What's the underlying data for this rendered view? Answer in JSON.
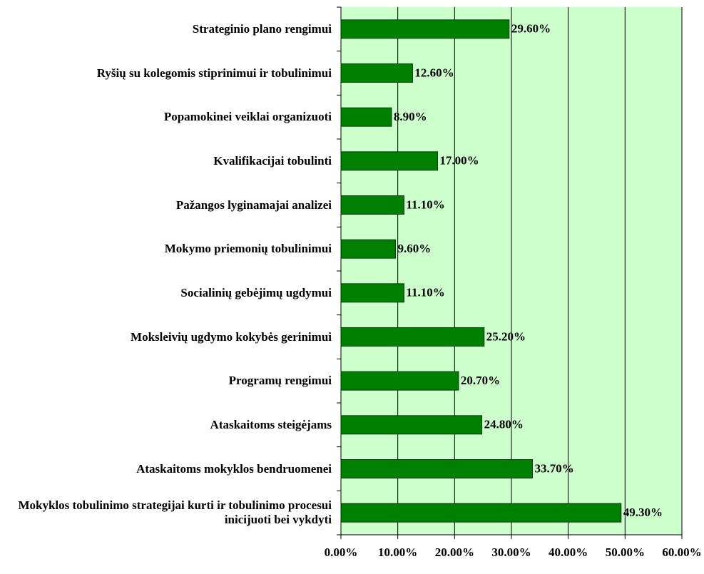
{
  "chart_data": {
    "type": "bar",
    "orientation": "horizontal",
    "categories": [
      "Strateginio plano rengimui",
      "Ryšių su kolegomis stiprinimui ir tobulinimui",
      "Popamokinei veiklai organizuoti",
      "Kvalifikacijai tobulinti",
      "Pažangos lyginamajai analizei",
      "Mokymo priemonių tobulinimui",
      "Socialinių gebėjimų ugdymui",
      "Moksleivių ugdymo kokybės gerinimui",
      "Programų rengimui",
      "Ataskaitoms steigėjams",
      "Ataskaitoms mokyklos bendruomenei",
      "Mokyklos tobulinimo strategijai kurti ir tobulinimo procesui inicijuoti bei vykdyti"
    ],
    "values": [
      29.6,
      12.6,
      8.9,
      17.0,
      11.1,
      9.6,
      11.1,
      25.2,
      20.7,
      24.8,
      33.7,
      49.3
    ],
    "value_labels": [
      "29.60%",
      "12.60%",
      "8.90%",
      "17.00%",
      "11.10%",
      "9.60%",
      "11.10%",
      "25.20%",
      "20.70%",
      "24.80%",
      "33.70%",
      "49.30%"
    ],
    "color": "#008000",
    "xlim": [
      0,
      60
    ],
    "xticks": [
      {
        "value": 0,
        "label": "0.00%"
      },
      {
        "value": 10,
        "label": "10.00%"
      },
      {
        "value": 20,
        "label": "20.00%"
      },
      {
        "value": 30,
        "label": "30.00%"
      },
      {
        "value": 40,
        "label": "40.00%"
      },
      {
        "value": 50,
        "label": "50.00%"
      },
      {
        "value": 60,
        "label": "60.00%"
      }
    ],
    "grid": true
  }
}
